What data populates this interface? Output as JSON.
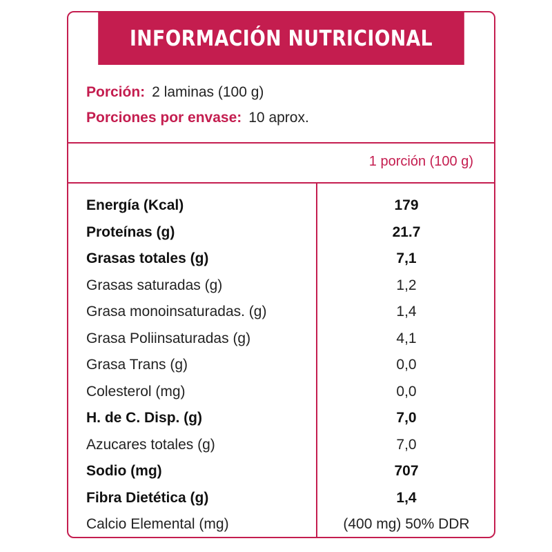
{
  "title": "INFORMACIÓN NUTRICIONAL",
  "serving": {
    "size_label": "Porción:",
    "size_value": "2 laminas (100 g)",
    "per_container_label": "Porciones por envase:",
    "per_container_value": "10 aprox."
  },
  "column_header": "1 porción (100 g)",
  "rows": [
    {
      "name": "Energía (Kcal)",
      "value": "179"
    },
    {
      "name": "Proteínas (g)",
      "value": "21.7"
    },
    {
      "name": "Grasas totales (g)",
      "value": "7,1"
    },
    {
      "name": "Grasas saturadas (g)",
      "value": "1,2"
    },
    {
      "name": "Grasa monoinsaturadas. (g)",
      "value": "1,4"
    },
    {
      "name": "Grasa Poliinsaturadas (g)",
      "value": "4,1"
    },
    {
      "name": "Grasa Trans (g)",
      "value": "0,0"
    },
    {
      "name": "Colesterol (mg)",
      "value": "0,0"
    },
    {
      "name": "H. de C. Disp. (g)",
      "value": "7,0"
    },
    {
      "name": "Azucares totales (g)",
      "value": "7,0"
    },
    {
      "name": "Sodio (mg)",
      "value": "707"
    },
    {
      "name": "Fibra Dietética (g)",
      "value": "1,4"
    },
    {
      "name": "Calcio Elemental (mg)",
      "value": "(400 mg) 50% DDR"
    }
  ],
  "colors": {
    "accent": "#c41d4f",
    "text": "#222222",
    "background": "#ffffff"
  }
}
